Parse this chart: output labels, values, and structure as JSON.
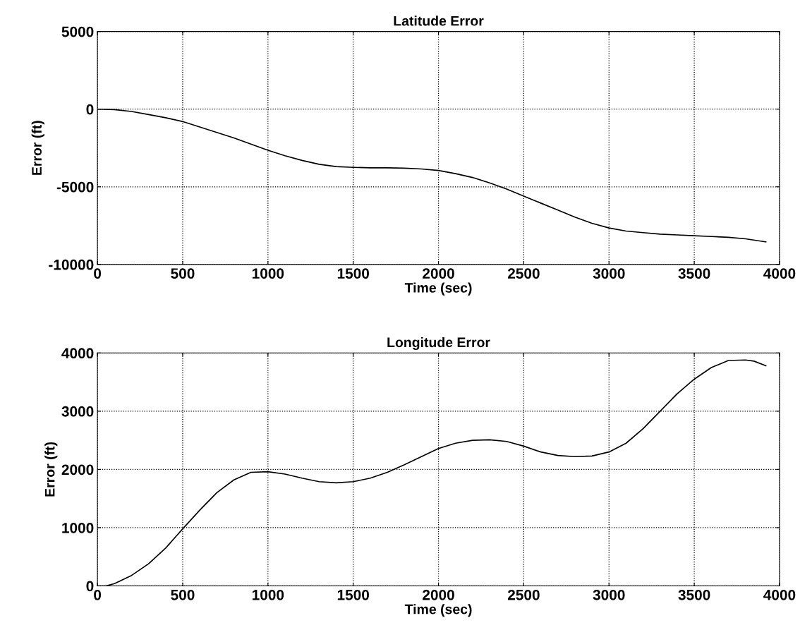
{
  "chart_data": [
    {
      "type": "line",
      "title": "Latitude Error",
      "xlabel": "Time (sec)",
      "ylabel": "Error (ft)",
      "xlim": [
        0,
        4000
      ],
      "xticks": [
        0,
        500,
        1000,
        1500,
        2000,
        2500,
        3000,
        3500,
        4000
      ],
      "ylim": [
        -10000,
        5000
      ],
      "yticks": [
        -10000,
        -5000,
        0,
        5000
      ],
      "grid": true,
      "x": [
        0,
        100,
        200,
        300,
        400,
        500,
        600,
        700,
        800,
        900,
        1000,
        1100,
        1200,
        1300,
        1400,
        1500,
        1600,
        1700,
        1800,
        1900,
        2000,
        2100,
        2200,
        2300,
        2400,
        2500,
        2600,
        2700,
        2800,
        2900,
        3000,
        3100,
        3200,
        3300,
        3400,
        3500,
        3600,
        3700,
        3800,
        3920
      ],
      "series": [
        {
          "color": "#000000",
          "values": [
            0,
            -30,
            -150,
            -350,
            -550,
            -800,
            -1150,
            -1500,
            -1850,
            -2250,
            -2650,
            -3000,
            -3300,
            -3550,
            -3700,
            -3750,
            -3780,
            -3780,
            -3800,
            -3850,
            -3950,
            -4150,
            -4400,
            -4750,
            -5150,
            -5600,
            -6050,
            -6500,
            -6950,
            -7350,
            -7650,
            -7850,
            -7950,
            -8050,
            -8100,
            -8150,
            -8200,
            -8250,
            -8350,
            -8550
          ]
        }
      ]
    },
    {
      "type": "line",
      "title": "Longitude Error",
      "xlabel": "Time (sec)",
      "ylabel": "Error (ft)",
      "xlim": [
        0,
        4000
      ],
      "xticks": [
        0,
        500,
        1000,
        1500,
        2000,
        2500,
        3000,
        3500,
        4000
      ],
      "ylim": [
        0,
        4000
      ],
      "yticks": [
        0,
        1000,
        2000,
        3000,
        4000
      ],
      "grid": true,
      "x": [
        0,
        50,
        100,
        200,
        300,
        400,
        500,
        600,
        700,
        800,
        900,
        1000,
        1100,
        1200,
        1300,
        1400,
        1500,
        1600,
        1700,
        1800,
        1900,
        2000,
        2100,
        2200,
        2300,
        2400,
        2500,
        2600,
        2700,
        2800,
        2900,
        3000,
        3100,
        3200,
        3300,
        3400,
        3500,
        3600,
        3700,
        3800,
        3850,
        3920
      ],
      "series": [
        {
          "color": "#000000",
          "values": [
            0,
            0,
            40,
            180,
            380,
            650,
            980,
            1300,
            1600,
            1820,
            1950,
            1960,
            1920,
            1850,
            1790,
            1770,
            1790,
            1850,
            1950,
            2080,
            2220,
            2360,
            2450,
            2500,
            2510,
            2480,
            2400,
            2300,
            2240,
            2220,
            2230,
            2300,
            2450,
            2700,
            3000,
            3300,
            3550,
            3750,
            3870,
            3880,
            3860,
            3780
          ]
        }
      ]
    }
  ]
}
